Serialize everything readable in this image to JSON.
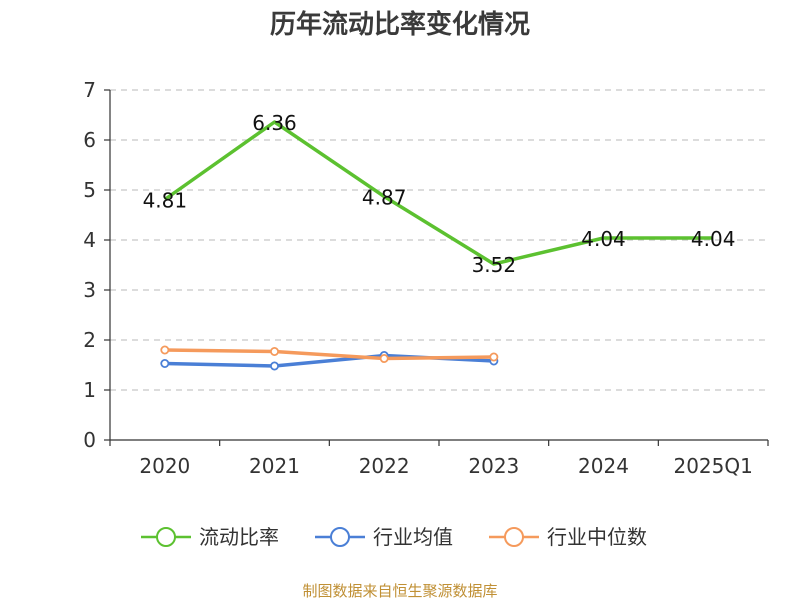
{
  "chart_data": {
    "type": "line",
    "title": "历年流动比率变化情况",
    "categories": [
      "2020",
      "2021",
      "2022",
      "2023",
      "2024",
      "2025Q1"
    ],
    "ylim": [
      0,
      7
    ],
    "yticks": [
      "0",
      "1",
      "2",
      "3",
      "4",
      "5",
      "6",
      "7"
    ],
    "grid": true,
    "legend_position": "bottom",
    "series": [
      {
        "name": "流动比率",
        "color": "#5cc130",
        "values": [
          4.81,
          6.36,
          4.87,
          3.52,
          4.04,
          4.04
        ],
        "labels": [
          "4.81",
          "6.36",
          "4.87",
          "3.52",
          "4.04",
          "4.04"
        ],
        "show_points": false,
        "show_labels": true
      },
      {
        "name": "行业均值",
        "color": "#4a7fd6",
        "values": [
          1.53,
          1.48,
          1.69,
          1.58,
          null,
          null
        ],
        "show_points": true,
        "show_labels": false
      },
      {
        "name": "行业中位数",
        "color": "#f59a5c",
        "values": [
          1.8,
          1.77,
          1.63,
          1.66,
          null,
          null
        ],
        "show_points": true,
        "show_labels": false
      }
    ]
  },
  "source_text": "制图数据来自恒生聚源数据库"
}
